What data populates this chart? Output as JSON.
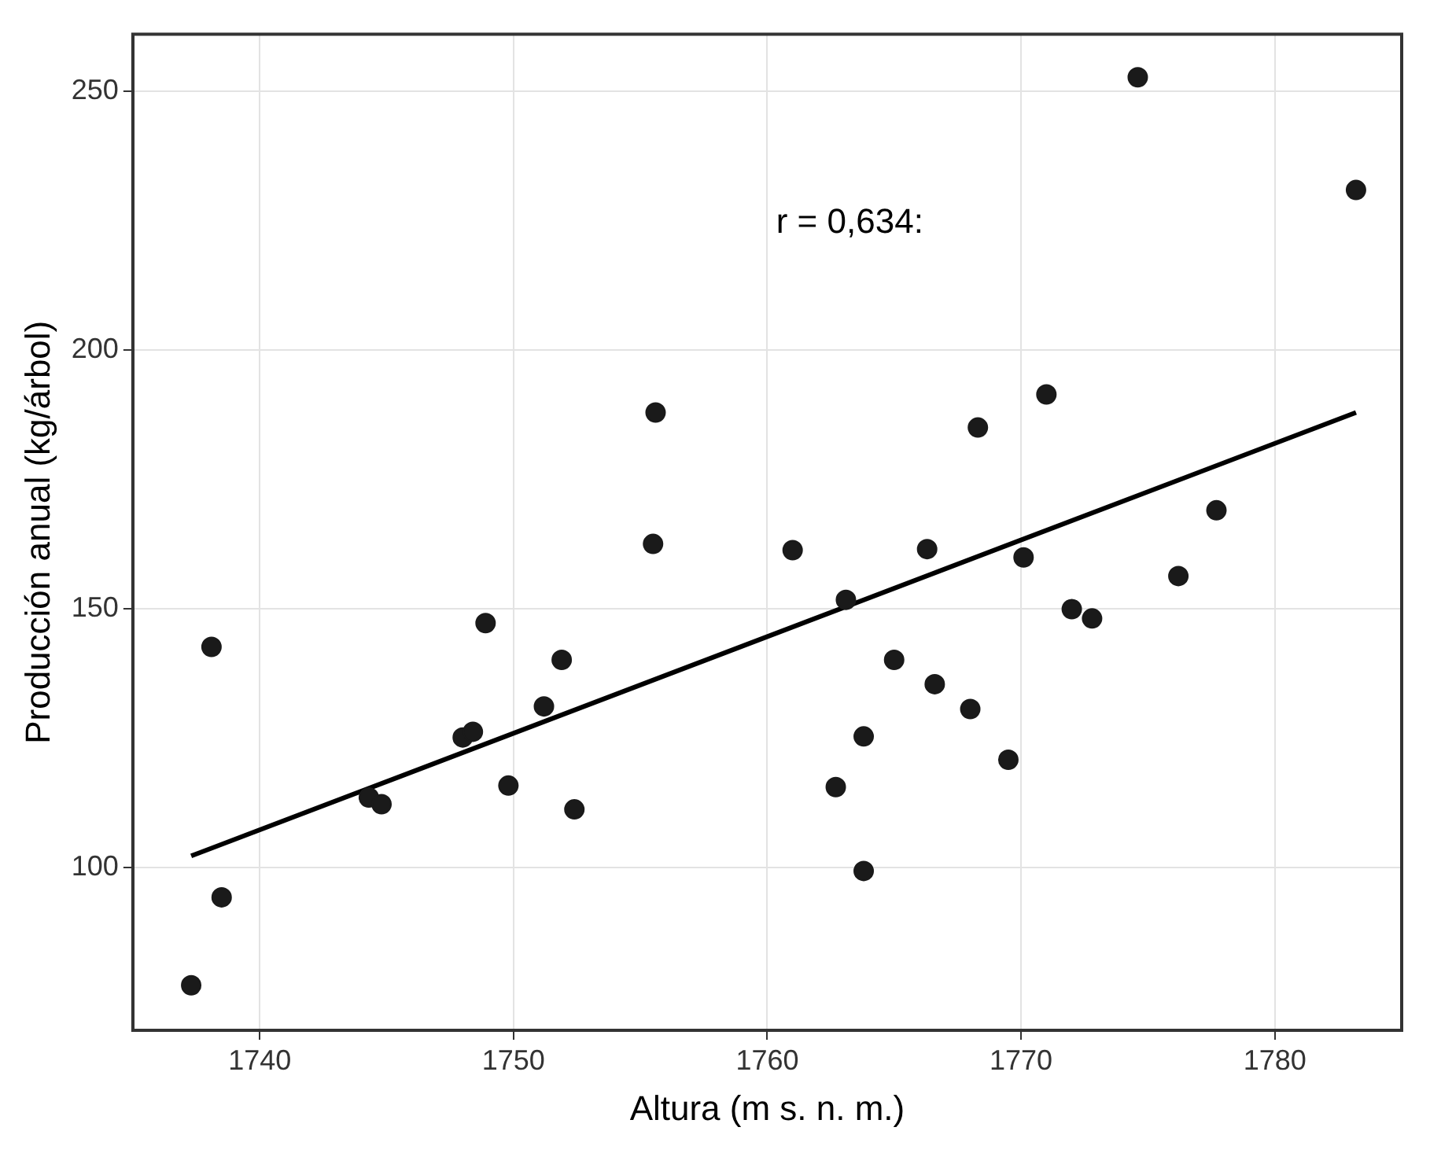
{
  "chart_data": {
    "type": "scatter",
    "xlabel": "Altura (m s. n. m.)",
    "ylabel": "Producción anual (kg/árbol)",
    "annotations": [
      "r = 0,634:"
    ],
    "xlim": [
      1735,
      1785
    ],
    "ylim": [
      68.5,
      261
    ],
    "xticks": [
      1740,
      1750,
      1760,
      1770,
      1780
    ],
    "yticks": [
      100,
      150,
      200,
      250
    ],
    "grid": true,
    "legend": false,
    "series": [
      {
        "marker": "circle",
        "color": "#1a1a1a",
        "x": [
          1737.3,
          1738.1,
          1738.5,
          1744.3,
          1744.8,
          1748.0,
          1748.4,
          1748.9,
          1749.8,
          1751.2,
          1751.9,
          1752.4,
          1755.5,
          1755.6,
          1774.6,
          1783.2,
          1771.0,
          1768.3,
          1777.7,
          1761.0,
          1766.3,
          1770.1,
          1763.1,
          1776.2,
          1772.0,
          1772.8,
          1765.0,
          1766.6,
          1768.0,
          1763.8,
          1769.5,
          1762.7,
          1763.8
        ],
        "values": [
          77.2,
          142.6,
          94.2,
          113.5,
          112.2,
          125.1,
          126.2,
          147.2,
          115.8,
          131.1,
          140.1,
          111.2,
          162.5,
          187.9,
          252.7,
          230.9,
          191.4,
          185.0,
          169.0,
          161.3,
          161.5,
          159.9,
          151.7,
          156.3,
          149.9,
          148.1,
          140.1,
          135.4,
          130.6,
          125.3,
          120.8,
          115.5,
          99.3
        ]
      },
      {
        "type": "line",
        "color": "#000000",
        "x": [
          1737.3,
          1783.2
        ],
        "values": [
          102.2,
          187.9
        ]
      }
    ]
  }
}
